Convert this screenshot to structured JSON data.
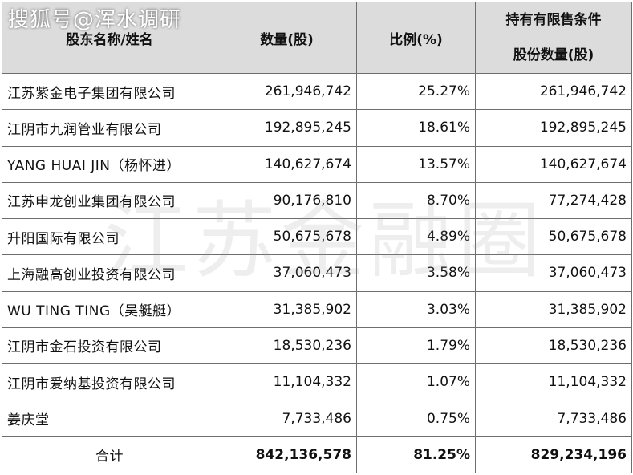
{
  "source_tag": "搜狐号@浑水调研",
  "watermark_text": "江苏金融圈",
  "table": {
    "headers": {
      "name": "股东名称/姓名",
      "shares": "数量(股)",
      "ratio": "比例(%)",
      "restricted_line1": "持有有限售条件",
      "restricted_line2": "股份数量(股)"
    },
    "rows": [
      {
        "name": "江苏紫金电子集团有限公司",
        "shares": "261,946,742",
        "ratio": "25.27%",
        "restricted": "261,946,742"
      },
      {
        "name": "江阴市九润管业有限公司",
        "shares": "192,895,245",
        "ratio": "18.61%",
        "restricted": "192,895,245"
      },
      {
        "name": "YANG HUAI JIN（杨怀进）",
        "shares": "140,627,674",
        "ratio": "13.57%",
        "restricted": "140,627,674"
      },
      {
        "name": "江苏申龙创业集团有限公司",
        "shares": "90,176,810",
        "ratio": "8.70%",
        "restricted": "77,274,428"
      },
      {
        "name": "升阳国际有限公司",
        "shares": "50,675,678",
        "ratio": "4.89%",
        "restricted": "50,675,678"
      },
      {
        "name": "上海融高创业投资有限公司",
        "shares": "37,060,473",
        "ratio": "3.58%",
        "restricted": "37,060,473"
      },
      {
        "name": "WU TING TING（吴艇艇）",
        "shares": "31,385,902",
        "ratio": "3.03%",
        "restricted": "31,385,902"
      },
      {
        "name": "江阴市金石投资有限公司",
        "shares": "18,530,236",
        "ratio": "1.79%",
        "restricted": "18,530,236"
      },
      {
        "name": "江阴市爱纳基投资有限公司",
        "shares": "11,104,332",
        "ratio": "1.07%",
        "restricted": "11,104,332"
      },
      {
        "name": "姜庆堂",
        "shares": "7,733,486",
        "ratio": "0.75%",
        "restricted": "7,733,486"
      }
    ],
    "total": {
      "label": "合计",
      "shares": "842,136,578",
      "ratio": "81.25%",
      "restricted": "829,234,196"
    }
  }
}
